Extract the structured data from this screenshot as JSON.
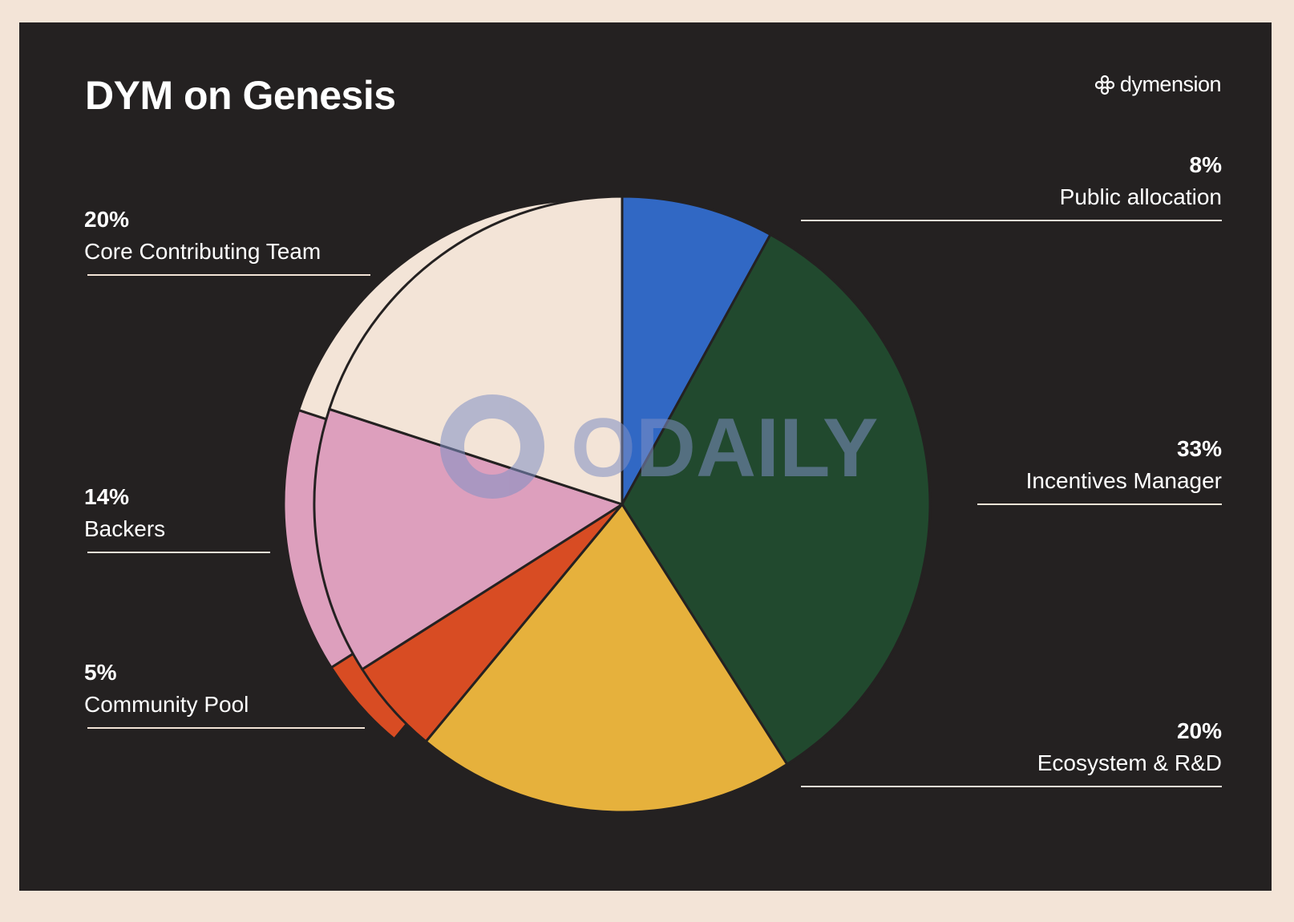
{
  "header": {
    "title": "DYM on Genesis",
    "brand_name": "dymension"
  },
  "chart_data": {
    "type": "pie",
    "title": "DYM on Genesis",
    "slices": [
      {
        "label": "Public allocation",
        "value": 8,
        "value_label": "8%",
        "color": "#3168c4"
      },
      {
        "label": "Incentives Manager",
        "value": 33,
        "value_label": "33%",
        "color": "#21492e"
      },
      {
        "label": "Ecosystem & R&D",
        "value": 20,
        "value_label": "20%",
        "color": "#e6b13c"
      },
      {
        "label": "Community Pool",
        "value": 5,
        "value_label": "5%",
        "color": "#d84c23"
      },
      {
        "label": "Backers",
        "value": 14,
        "value_label": "14%",
        "color": "#dd9fbd"
      },
      {
        "label": "Core Contributing Team",
        "value": 20,
        "value_label": "20%",
        "color": "#f3e4d7"
      }
    ],
    "start_angle_deg": 0,
    "direction": "clockwise"
  },
  "watermark": {
    "text": "ODAILY",
    "color": "#7f8fc4"
  }
}
